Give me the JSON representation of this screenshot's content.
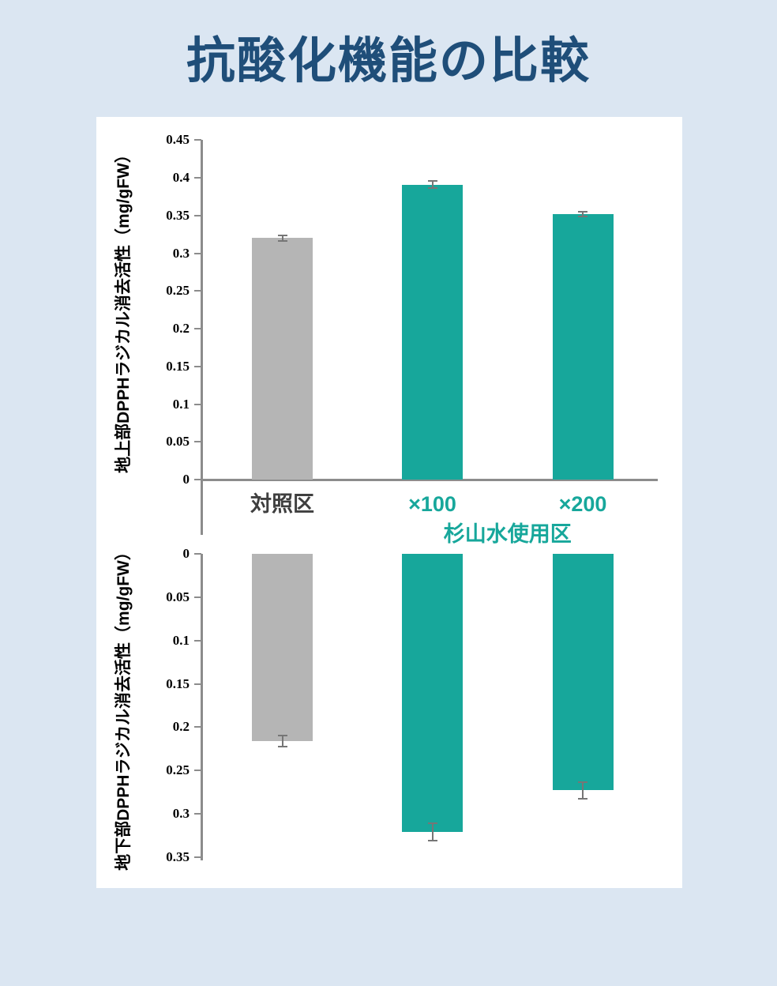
{
  "page": {
    "title": "抗酸化機能の比較"
  },
  "colors": {
    "background": "#dbe6f2",
    "panel": "#ffffff",
    "title": "#1f4e79",
    "teal": "#17a79b",
    "gray_bar": "#b5b5b5",
    "axis": "#8c8c8c",
    "error_bar": "#767676",
    "control_label": "#3f3f3f",
    "tick_label": "#000000"
  },
  "chart_data": [
    {
      "type": "bar",
      "title": "",
      "ylabel": "地上部DPPHラジカル消去活性（mg/gFW）",
      "categories": [
        "対照区",
        "×100",
        "×200"
      ],
      "values": [
        0.32,
        0.391,
        0.352
      ],
      "errors": [
        0.004,
        0.005,
        0.003
      ],
      "bar_colors": [
        "gray",
        "teal",
        "teal"
      ],
      "category_colors": [
        "control",
        "teal",
        "teal"
      ],
      "group_label": "杉山水使用区",
      "axis": {
        "min": 0,
        "max": 0.45,
        "step": 0.05,
        "inverted": false
      },
      "tick_labels": [
        "0",
        "0.05",
        "0.1",
        "0.15",
        "0.2",
        "0.25",
        "0.3",
        "0.35",
        "0.4",
        "0.45"
      ],
      "grid": false,
      "legend": "none"
    },
    {
      "type": "bar",
      "title": "",
      "ylabel": "地下部DPPHラジカル消去活性（mg/gFW）",
      "categories": [],
      "values": [
        0.216,
        0.321,
        0.273
      ],
      "errors": [
        0.006,
        0.01,
        0.01
      ],
      "bar_colors": [
        "gray",
        "teal",
        "teal"
      ],
      "axis": {
        "min": 0,
        "max": 0.35,
        "step": 0.05,
        "inverted": true
      },
      "tick_labels": [
        "0",
        "0.05",
        "0.1",
        "0.15",
        "0.2",
        "0.25",
        "0.3",
        "0.35"
      ],
      "grid": false,
      "legend": "none"
    }
  ]
}
